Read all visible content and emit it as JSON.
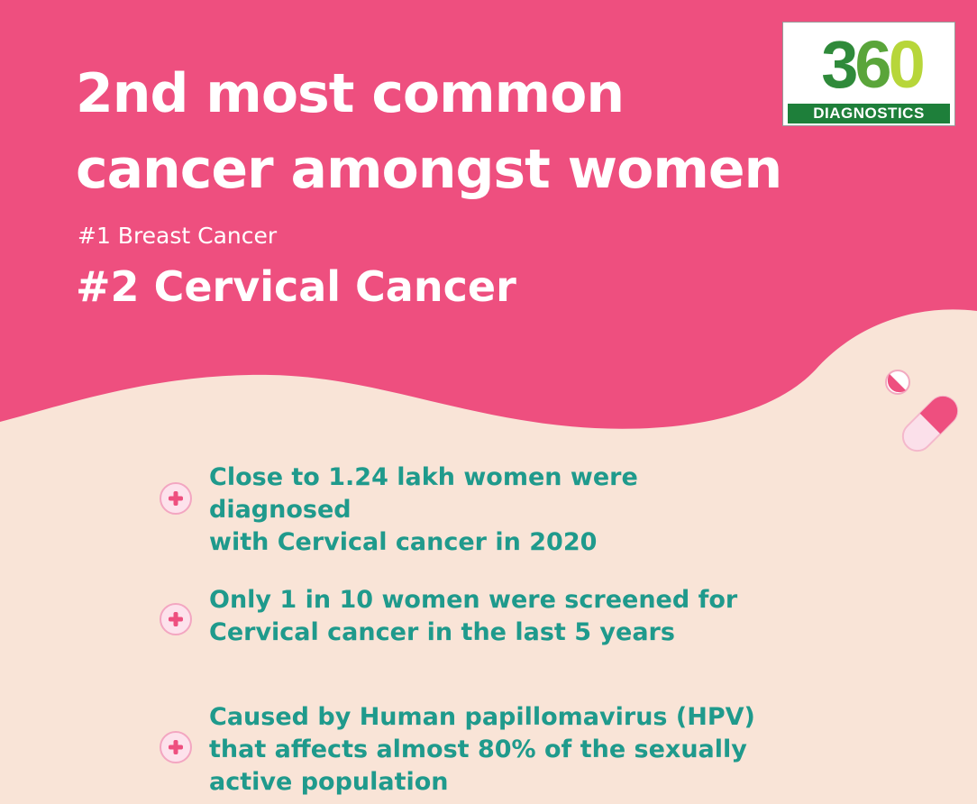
{
  "headline": {
    "line1": "2nd most common",
    "line2": "cancer amongst women"
  },
  "ranking": {
    "first": "#1 Breast Cancer",
    "second": "#2 Cervical Cancer"
  },
  "logo": {
    "number_parts": [
      "3",
      "6",
      "0"
    ],
    "caption": "DIAGNOSTICS"
  },
  "facts": [
    {
      "lines": [
        "Close to 1.24 lakh women were diagnosed",
        "with Cervical cancer in 2020"
      ],
      "icon": "plus-circle-icon"
    },
    {
      "lines": [
        "Only 1 in 10 women were screened for",
        "Cervical cancer in the last 5 years"
      ],
      "icon": "plus-circle-icon"
    },
    {
      "lines": [
        "Caused by Human papillomavirus (HPV)",
        "that affects almost 80% of the sexually",
        "active population"
      ],
      "icon": "plus-circle-icon"
    }
  ],
  "colors": {
    "header_pink": "#ee4f7f",
    "cream_background": "#f9e4d7",
    "fact_text_teal": "#1f9a8c",
    "logo_green": "#1e7f3a"
  }
}
